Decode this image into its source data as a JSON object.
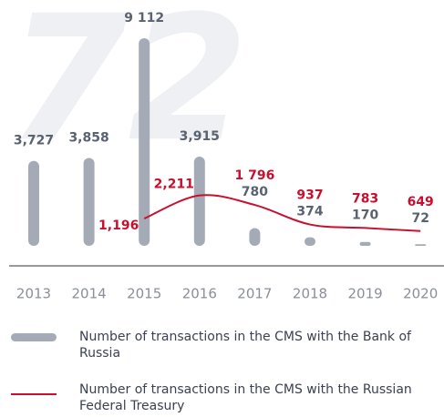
{
  "chart_data": {
    "type": "bar_line",
    "background_label": "72",
    "categories": [
      "2013",
      "2014",
      "2015",
      "2016",
      "2017",
      "2018",
      "2019",
      "2020"
    ],
    "series": [
      {
        "name": "Number of transactions in the CMS with the Bank of Russia",
        "color": "#a4abb6",
        "kind": "bar",
        "values": [
          3727,
          3858,
          9112,
          3915,
          780,
          374,
          170,
          72
        ],
        "value_labels": [
          "3,727",
          "3,858",
          "9 112",
          "3,915",
          "780",
          "374",
          "170",
          "72"
        ],
        "label_color": "#5a6270"
      },
      {
        "name": "Number of transactions in the CMS with the Russian Federal Treasury",
        "color": "#c8102e",
        "kind": "line",
        "values": [
          null,
          null,
          1196,
          2211,
          1796,
          937,
          783,
          649
        ],
        "value_labels": [
          null,
          null,
          "1,196",
          "2,211",
          "1 796",
          "937",
          "783",
          "649"
        ]
      }
    ]
  }
}
